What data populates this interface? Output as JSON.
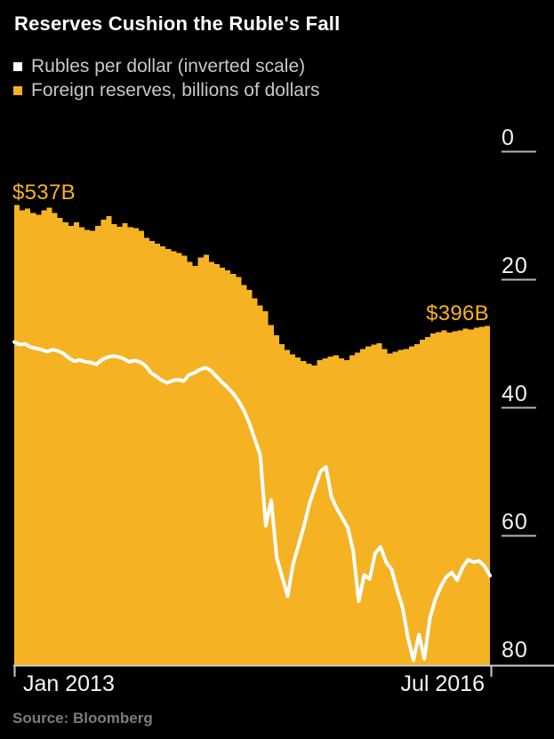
{
  "title": "Reserves Cushion the Ruble's Fall",
  "legend": [
    {
      "label": "Rubles per dollar (inverted scale)",
      "swatch_color": "#ffffff"
    },
    {
      "label": "Foreign reserves, billions of dollars",
      "swatch_color": "#f5b223"
    }
  ],
  "annotations": {
    "start_reserves": "$537B",
    "end_reserves": "$396B"
  },
  "source": "Source: Bloomberg",
  "colors": {
    "background": "#000000",
    "reserves_area": "#f5b223",
    "ruble_line": "#ffffff",
    "axis_line": "#cccccc",
    "tick_line": "#b5b5b5",
    "axis_label": "#f4f4f4",
    "legend_text": "#c8c8c8",
    "annotation_text": "#f5b223",
    "source_text": "#7c7c7c"
  },
  "chart_data": {
    "type": "area",
    "subtype": "step-area with overlaid line, dual hidden scales",
    "frequency": "biweekly, Jan 2013 - Aug 2016",
    "x_axis": {
      "range": [
        "Jan 2013",
        "Aug 2016"
      ],
      "ticks": [
        {
          "label": "Jan 2013",
          "position": "left"
        },
        {
          "label": "Jul 2016",
          "position": "right"
        }
      ]
    },
    "y_axis": {
      "side": "right",
      "title": "Rubles per dollar (inverted scale)",
      "min": 0,
      "max": 80,
      "inverted": true,
      "ticks": [
        {
          "value": 0,
          "label": "0"
        },
        {
          "value": 20,
          "label": "20"
        },
        {
          "value": 40,
          "label": "40"
        },
        {
          "value": 60,
          "label": "60"
        },
        {
          "value": 80,
          "label": "80"
        }
      ]
    },
    "hidden_reserves_axis": {
      "min": 0,
      "max": 600,
      "unit": "billions of dollars"
    },
    "series": [
      {
        "name": "Rubles per dollar (inverted scale)",
        "type": "line",
        "color": "#ffffff",
        "scale": "rubles 0-80 inverted",
        "start_value": 29.8,
        "end_value": 66.3,
        "values": [
          29.8,
          30.2,
          30.1,
          30.6,
          30.8,
          31.0,
          31.3,
          31.0,
          31.2,
          31.6,
          32.3,
          32.8,
          32.6,
          32.9,
          33.0,
          33.3,
          32.6,
          32.2,
          32.0,
          32.1,
          32.4,
          32.9,
          32.7,
          32.9,
          33.5,
          34.6,
          35.2,
          35.8,
          36.2,
          35.8,
          35.7,
          35.9,
          34.9,
          34.6,
          34.1,
          33.8,
          34.3,
          35.2,
          36.1,
          36.9,
          37.8,
          39.0,
          40.5,
          42.5,
          45.0,
          47.5,
          58.5,
          54.5,
          63.5,
          66.5,
          69.5,
          64.5,
          61.5,
          58.5,
          55.0,
          52.5,
          50.0,
          49.3,
          54.0,
          55.8,
          57.3,
          58.8,
          62.5,
          70.3,
          66.2,
          66.8,
          62.8,
          61.8,
          64.2,
          65.3,
          68.5,
          71.2,
          76.0,
          79.5,
          75.5,
          79.3,
          73.0,
          70.0,
          68.0,
          66.5,
          65.8,
          67.0,
          65.0,
          63.8,
          64.2,
          64.0,
          64.8,
          66.3
        ]
      },
      {
        "name": "Foreign reserves, billions of dollars",
        "type": "step-area",
        "color": "#f5b223",
        "scale": "billions USD 0-600",
        "start_value": 537,
        "end_value": 396,
        "values": [
          537,
          531,
          533,
          528,
          526,
          531,
          534,
          528,
          522,
          517,
          513,
          517,
          511,
          508,
          507,
          513,
          520,
          524,
          515,
          512,
          516,
          511,
          510,
          507,
          499,
          495,
          492,
          489,
          486,
          483,
          481,
          478,
          471,
          466,
          476,
          479,
          471,
          468,
          464,
          461,
          457,
          453,
          444,
          438,
          428,
          420,
          413,
          397,
          385,
          375,
          368,
          363,
          359,
          355,
          352,
          350,
          356,
          358,
          360,
          362,
          358,
          356,
          362,
          365,
          369,
          372,
          374,
          376,
          369,
          364,
          366,
          368,
          369,
          372,
          375,
          380,
          383,
          387,
          389,
          391,
          388,
          390,
          391,
          393,
          392,
          394,
          395,
          396
        ]
      }
    ]
  }
}
